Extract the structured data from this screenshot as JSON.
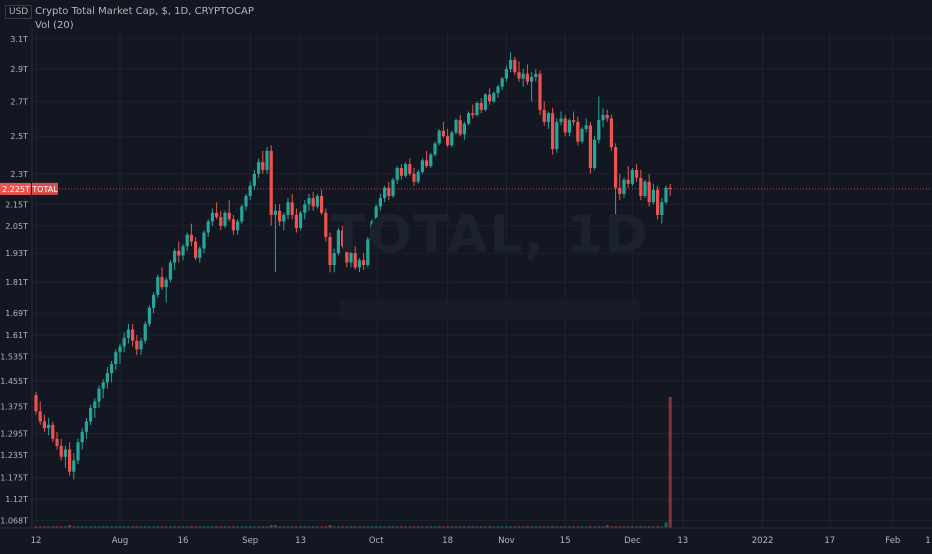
{
  "header": {
    "currency": "USD",
    "title": "Crypto Total Market Cap, $, 1D, CRYPTOCAP",
    "volume_indicator": "Vol (20)",
    "watermark": "TOTAL, 1D"
  },
  "colors": {
    "background": "#131722",
    "up": "#26a69a",
    "down": "#ef5350",
    "grid": "#1e222d",
    "axis_text": "#b2b5be",
    "price_line": "#ef5350"
  },
  "price_label": {
    "value": "2.225T",
    "symbol": "TOTAL",
    "price": 2.225
  },
  "chart_data": {
    "type": "candlestick",
    "y_axis_scale": "log",
    "ylim": [
      1.06,
      3.12
    ],
    "y_ticks": [
      {
        "label": "3.1T",
        "value": 3.1
      },
      {
        "label": "2.9T",
        "value": 2.9
      },
      {
        "label": "2.7T",
        "value": 2.7
      },
      {
        "label": "2.5T",
        "value": 2.5
      },
      {
        "label": "2.3T",
        "value": 2.3
      },
      {
        "label": "2.15T",
        "value": 2.15
      },
      {
        "label": "2.05T",
        "value": 2.05
      },
      {
        "label": "1.93T",
        "value": 1.93
      },
      {
        "label": "1.81T",
        "value": 1.81
      },
      {
        "label": "1.69T",
        "value": 1.69
      },
      {
        "label": "1.61T",
        "value": 1.61
      },
      {
        "label": "1.535T",
        "value": 1.535
      },
      {
        "label": "1.455T",
        "value": 1.455
      },
      {
        "label": "1.375T",
        "value": 1.375
      },
      {
        "label": "1.295T",
        "value": 1.295
      },
      {
        "label": "1.235T",
        "value": 1.235
      },
      {
        "label": "1.175T",
        "value": 1.175
      },
      {
        "label": "1.12T",
        "value": 1.12
      },
      {
        "label": "1.068T",
        "value": 1.068
      }
    ],
    "x_ticks": [
      {
        "label": "12",
        "day": 0
      },
      {
        "label": "Aug",
        "day": 20
      },
      {
        "label": "16",
        "day": 35
      },
      {
        "label": "Sep",
        "day": 51
      },
      {
        "label": "13",
        "day": 63
      },
      {
        "label": "Oct",
        "day": 81
      },
      {
        "label": "18",
        "day": 98
      },
      {
        "label": "Nov",
        "day": 112
      },
      {
        "label": "15",
        "day": 126
      },
      {
        "label": "Dec",
        "day": 142
      },
      {
        "label": "13",
        "day": 154
      },
      {
        "label": "2022",
        "day": 173
      },
      {
        "label": "17",
        "day": 189
      },
      {
        "label": "Feb",
        "day": 204
      },
      {
        "label": "1",
        "day": 218
      }
    ],
    "grid": true,
    "candles": [
      [
        1.41,
        1.42,
        1.35,
        1.36
      ],
      [
        1.36,
        1.39,
        1.32,
        1.33
      ],
      [
        1.33,
        1.35,
        1.3,
        1.31
      ],
      [
        1.31,
        1.34,
        1.29,
        1.32
      ],
      [
        1.32,
        1.33,
        1.27,
        1.28
      ],
      [
        1.28,
        1.3,
        1.25,
        1.26
      ],
      [
        1.26,
        1.28,
        1.22,
        1.23
      ],
      [
        1.23,
        1.26,
        1.2,
        1.25
      ],
      [
        1.25,
        1.27,
        1.18,
        1.19
      ],
      [
        1.19,
        1.24,
        1.17,
        1.22
      ],
      [
        1.22,
        1.28,
        1.21,
        1.27
      ],
      [
        1.27,
        1.31,
        1.25,
        1.3
      ],
      [
        1.3,
        1.34,
        1.28,
        1.33
      ],
      [
        1.33,
        1.38,
        1.32,
        1.37
      ],
      [
        1.37,
        1.4,
        1.34,
        1.39
      ],
      [
        1.39,
        1.44,
        1.37,
        1.43
      ],
      [
        1.43,
        1.46,
        1.4,
        1.45
      ],
      [
        1.45,
        1.5,
        1.43,
        1.48
      ],
      [
        1.48,
        1.52,
        1.45,
        1.51
      ],
      [
        1.51,
        1.56,
        1.49,
        1.55
      ],
      [
        1.55,
        1.58,
        1.51,
        1.57
      ],
      [
        1.57,
        1.62,
        1.55,
        1.6
      ],
      [
        1.6,
        1.65,
        1.58,
        1.63
      ],
      [
        1.63,
        1.65,
        1.57,
        1.59
      ],
      [
        1.59,
        1.61,
        1.54,
        1.56
      ],
      [
        1.56,
        1.6,
        1.54,
        1.59
      ],
      [
        1.59,
        1.66,
        1.58,
        1.65
      ],
      [
        1.65,
        1.72,
        1.64,
        1.71
      ],
      [
        1.71,
        1.77,
        1.69,
        1.76
      ],
      [
        1.76,
        1.84,
        1.75,
        1.83
      ],
      [
        1.83,
        1.87,
        1.78,
        1.79
      ],
      [
        1.79,
        1.83,
        1.73,
        1.82
      ],
      [
        1.82,
        1.9,
        1.81,
        1.89
      ],
      [
        1.89,
        1.95,
        1.86,
        1.94
      ],
      [
        1.94,
        1.98,
        1.89,
        1.92
      ],
      [
        1.92,
        1.97,
        1.9,
        1.96
      ],
      [
        1.96,
        2.02,
        1.94,
        2.01
      ],
      [
        2.01,
        2.06,
        1.96,
        1.98
      ],
      [
        1.98,
        2.0,
        1.9,
        1.91
      ],
      [
        1.91,
        1.96,
        1.89,
        1.95
      ],
      [
        1.95,
        2.03,
        1.93,
        2.02
      ],
      [
        2.02,
        2.08,
        2.0,
        2.07
      ],
      [
        2.07,
        2.13,
        2.05,
        2.11
      ],
      [
        2.11,
        2.16,
        2.08,
        2.09
      ],
      [
        2.09,
        2.12,
        2.03,
        2.05
      ],
      [
        2.05,
        2.12,
        2.04,
        2.11
      ],
      [
        2.11,
        2.17,
        2.07,
        2.08
      ],
      [
        2.08,
        2.1,
        2.01,
        2.03
      ],
      [
        2.03,
        2.08,
        2.01,
        2.07
      ],
      [
        2.07,
        2.15,
        2.06,
        2.14
      ],
      [
        2.14,
        2.2,
        2.12,
        2.19
      ],
      [
        2.19,
        2.26,
        2.17,
        2.24
      ],
      [
        2.24,
        2.32,
        2.22,
        2.3
      ],
      [
        2.3,
        2.38,
        2.28,
        2.36
      ],
      [
        2.36,
        2.42,
        2.3,
        2.32
      ],
      [
        2.32,
        2.44,
        2.3,
        2.42
      ],
      [
        2.42,
        2.45,
        2.05,
        2.1
      ],
      [
        2.1,
        2.15,
        1.85,
        2.12
      ],
      [
        2.12,
        2.15,
        2.05,
        2.07
      ],
      [
        2.07,
        2.11,
        2.03,
        2.1
      ],
      [
        2.1,
        2.18,
        2.08,
        2.16
      ],
      [
        2.16,
        2.2,
        2.08,
        2.1
      ],
      [
        2.1,
        2.13,
        2.02,
        2.04
      ],
      [
        2.04,
        2.12,
        2.03,
        2.11
      ],
      [
        2.11,
        2.17,
        2.08,
        2.15
      ],
      [
        2.15,
        2.2,
        2.12,
        2.18
      ],
      [
        2.18,
        2.21,
        2.12,
        2.14
      ],
      [
        2.14,
        2.2,
        2.13,
        2.19
      ],
      [
        2.19,
        2.22,
        2.1,
        2.11
      ],
      [
        2.11,
        2.13,
        1.98,
        2.0
      ],
      [
        2.0,
        2.02,
        1.85,
        1.88
      ],
      [
        1.88,
        1.95,
        1.85,
        1.93
      ],
      [
        1.93,
        2.04,
        1.92,
        2.03
      ],
      [
        2.03,
        2.05,
        1.95,
        1.96
      ],
      [
        1.96,
        1.99,
        1.87,
        1.89
      ],
      [
        1.89,
        1.94,
        1.87,
        1.93
      ],
      [
        1.93,
        1.96,
        1.86,
        1.87
      ],
      [
        1.87,
        1.91,
        1.85,
        1.9
      ],
      [
        1.9,
        1.93,
        1.86,
        1.88
      ],
      [
        1.88,
        2.0,
        1.87,
        1.99
      ],
      [
        1.99,
        2.08,
        1.98,
        2.07
      ],
      [
        2.07,
        2.15,
        2.05,
        2.14
      ],
      [
        2.14,
        2.2,
        2.12,
        2.18
      ],
      [
        2.18,
        2.24,
        2.16,
        2.23
      ],
      [
        2.23,
        2.26,
        2.17,
        2.19
      ],
      [
        2.19,
        2.28,
        2.18,
        2.27
      ],
      [
        2.27,
        2.34,
        2.25,
        2.33
      ],
      [
        2.33,
        2.35,
        2.27,
        2.29
      ],
      [
        2.29,
        2.36,
        2.28,
        2.35
      ],
      [
        2.35,
        2.38,
        2.29,
        2.3
      ],
      [
        2.3,
        2.33,
        2.24,
        2.26
      ],
      [
        2.26,
        2.32,
        2.25,
        2.31
      ],
      [
        2.31,
        2.38,
        2.3,
        2.37
      ],
      [
        2.37,
        2.42,
        2.33,
        2.34
      ],
      [
        2.34,
        2.41,
        2.33,
        2.4
      ],
      [
        2.4,
        2.47,
        2.39,
        2.46
      ],
      [
        2.46,
        2.54,
        2.45,
        2.53
      ],
      [
        2.53,
        2.58,
        2.49,
        2.5
      ],
      [
        2.5,
        2.54,
        2.44,
        2.45
      ],
      [
        2.45,
        2.53,
        2.44,
        2.52
      ],
      [
        2.52,
        2.6,
        2.51,
        2.59
      ],
      [
        2.59,
        2.62,
        2.5,
        2.51
      ],
      [
        2.51,
        2.58,
        2.48,
        2.57
      ],
      [
        2.57,
        2.64,
        2.56,
        2.63
      ],
      [
        2.63,
        2.68,
        2.6,
        2.62
      ],
      [
        2.62,
        2.7,
        2.61,
        2.69
      ],
      [
        2.69,
        2.72,
        2.63,
        2.65
      ],
      [
        2.65,
        2.75,
        2.64,
        2.74
      ],
      [
        2.74,
        2.78,
        2.68,
        2.7
      ],
      [
        2.7,
        2.76,
        2.69,
        2.75
      ],
      [
        2.75,
        2.8,
        2.72,
        2.79
      ],
      [
        2.79,
        2.85,
        2.77,
        2.84
      ],
      [
        2.84,
        2.92,
        2.82,
        2.9
      ],
      [
        2.9,
        3.01,
        2.88,
        2.96
      ],
      [
        2.96,
        2.98,
        2.86,
        2.88
      ],
      [
        2.88,
        2.95,
        2.82,
        2.84
      ],
      [
        2.84,
        2.9,
        2.79,
        2.87
      ],
      [
        2.87,
        2.93,
        2.8,
        2.82
      ],
      [
        2.82,
        2.88,
        2.7,
        2.85
      ],
      [
        2.85,
        2.9,
        2.82,
        2.87
      ],
      [
        2.87,
        2.89,
        2.62,
        2.65
      ],
      [
        2.65,
        2.7,
        2.56,
        2.58
      ],
      [
        2.58,
        2.64,
        2.54,
        2.63
      ],
      [
        2.63,
        2.66,
        2.4,
        2.43
      ],
      [
        2.43,
        2.6,
        2.41,
        2.58
      ],
      [
        2.58,
        2.64,
        2.56,
        2.6
      ],
      [
        2.6,
        2.62,
        2.5,
        2.52
      ],
      [
        2.52,
        2.6,
        2.5,
        2.59
      ],
      [
        2.59,
        2.64,
        2.56,
        2.58
      ],
      [
        2.58,
        2.61,
        2.45,
        2.47
      ],
      [
        2.47,
        2.55,
        2.46,
        2.54
      ],
      [
        2.54,
        2.6,
        2.52,
        2.56
      ],
      [
        2.56,
        2.58,
        2.3,
        2.33
      ],
      [
        2.33,
        2.5,
        2.32,
        2.48
      ],
      [
        2.48,
        2.73,
        2.46,
        2.59
      ],
      [
        2.59,
        2.66,
        2.55,
        2.62
      ],
      [
        2.62,
        2.65,
        2.58,
        2.6
      ],
      [
        2.6,
        2.62,
        2.42,
        2.44
      ],
      [
        2.44,
        2.46,
        2.05,
        2.23
      ],
      [
        2.23,
        2.3,
        2.17,
        2.2
      ],
      [
        2.2,
        2.28,
        2.18,
        2.27
      ],
      [
        2.27,
        2.34,
        2.23,
        2.25
      ],
      [
        2.25,
        2.33,
        2.24,
        2.32
      ],
      [
        2.32,
        2.35,
        2.26,
        2.28
      ],
      [
        2.28,
        2.32,
        2.17,
        2.19
      ],
      [
        2.19,
        2.27,
        2.18,
        2.26
      ],
      [
        2.26,
        2.3,
        2.14,
        2.16
      ],
      [
        2.16,
        2.25,
        2.15,
        2.22
      ],
      [
        2.22,
        2.24,
        2.08,
        2.1
      ],
      [
        2.1,
        2.18,
        2.06,
        2.16
      ],
      [
        2.16,
        2.24,
        2.15,
        2.23
      ],
      [
        2.23,
        2.25,
        2.19,
        2.225
      ]
    ],
    "volume_max": 1.0,
    "volume": [
      0.02,
      0.02,
      0.02,
      0.02,
      0.02,
      0.02,
      0.02,
      0.02,
      0.03,
      0.02,
      0.02,
      0.02,
      0.02,
      0.02,
      0.02,
      0.02,
      0.02,
      0.02,
      0.02,
      0.02,
      0.02,
      0.02,
      0.02,
      0.02,
      0.02,
      0.02,
      0.02,
      0.02,
      0.02,
      0.02,
      0.02,
      0.02,
      0.02,
      0.02,
      0.02,
      0.02,
      0.02,
      0.02,
      0.02,
      0.02,
      0.02,
      0.02,
      0.02,
      0.02,
      0.02,
      0.02,
      0.02,
      0.02,
      0.02,
      0.02,
      0.02,
      0.02,
      0.02,
      0.02,
      0.02,
      0.02,
      0.03,
      0.03,
      0.02,
      0.02,
      0.02,
      0.02,
      0.02,
      0.02,
      0.02,
      0.02,
      0.02,
      0.02,
      0.02,
      0.02,
      0.03,
      0.02,
      0.02,
      0.02,
      0.02,
      0.02,
      0.02,
      0.02,
      0.02,
      0.02,
      0.02,
      0.02,
      0.02,
      0.02,
      0.02,
      0.02,
      0.02,
      0.02,
      0.02,
      0.02,
      0.02,
      0.02,
      0.02,
      0.02,
      0.02,
      0.02,
      0.02,
      0.02,
      0.02,
      0.02,
      0.02,
      0.02,
      0.02,
      0.02,
      0.02,
      0.02,
      0.02,
      0.02,
      0.02,
      0.02,
      0.02,
      0.02,
      0.02,
      0.02,
      0.02,
      0.02,
      0.02,
      0.02,
      0.02,
      0.02,
      0.02,
      0.02,
      0.02,
      0.02,
      0.02,
      0.02,
      0.02,
      0.02,
      0.02,
      0.02,
      0.02,
      0.02,
      0.02,
      0.02,
      0.02,
      0.02,
      0.03,
      0.02,
      0.02,
      0.02,
      0.02,
      0.02,
      0.02,
      0.02,
      0.02,
      0.02,
      0.02,
      0.02,
      0.02,
      0.02,
      0.05,
      1.0
    ]
  }
}
